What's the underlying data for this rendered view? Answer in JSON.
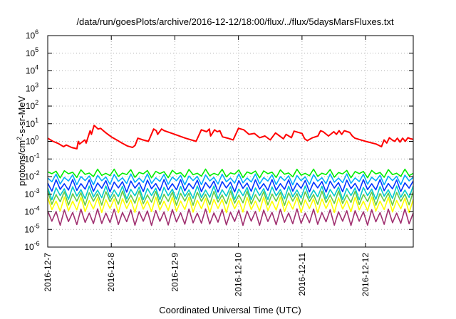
{
  "chart_data": {
    "type": "line",
    "title": "/data/run/goesPlots/archive/2016-12-12/18:00/flux/../flux/5daysMarsFluxes.txt",
    "xlabel": "Coordinated Universal Time (UTC)",
    "ylabel": "protons/cm²-s-sr-MeV",
    "ylabel_parts": [
      "protons/cm",
      "2",
      "-s-sr-MeV"
    ],
    "y_scale": "log",
    "ylim": [
      1e-06,
      1000000.0
    ],
    "y_ticks": [
      {
        "mantissa": "10",
        "exp": "-6",
        "value": 1e-06
      },
      {
        "mantissa": "10",
        "exp": "-5",
        "value": 1e-05
      },
      {
        "mantissa": "10",
        "exp": "-4",
        "value": 0.0001
      },
      {
        "mantissa": "10",
        "exp": "-3",
        "value": 0.001
      },
      {
        "mantissa": "10",
        "exp": "-2",
        "value": 0.01
      },
      {
        "mantissa": "10",
        "exp": "-1",
        "value": 0.1
      },
      {
        "mantissa": "10",
        "exp": "0",
        "value": 1
      },
      {
        "mantissa": "10",
        "exp": "1",
        "value": 10
      },
      {
        "mantissa": "10",
        "exp": "2",
        "value": 100
      },
      {
        "mantissa": "10",
        "exp": "3",
        "value": 1000
      },
      {
        "mantissa": "10",
        "exp": "4",
        "value": 10000
      },
      {
        "mantissa": "10",
        "exp": "5",
        "value": 100000
      },
      {
        "mantissa": "10",
        "exp": "6",
        "value": 1000000
      }
    ],
    "xlim": [
      "2016-12-07T00:00",
      "2016-12-12T18:00"
    ],
    "x_ticks": [
      {
        "label": "2016-12-7",
        "value": "2016-12-07T00:00"
      },
      {
        "label": "2016-12-8",
        "value": "2016-12-08T00:00"
      },
      {
        "label": "2016-12-9",
        "value": "2016-12-09T00:00"
      },
      {
        "label": "2016-12-10",
        "value": "2016-12-10T00:00"
      },
      {
        "label": "2016-12-11",
        "value": "2016-12-11T00:00"
      },
      {
        "label": "2016-12-12",
        "value": "2016-12-12T00:00"
      }
    ],
    "grid": true,
    "legend": "none",
    "series": [
      {
        "color": "#ff0000",
        "x": [
          "2016-12-07T00:00",
          "2016-12-07T02:00",
          "2016-12-07T04:00",
          "2016-12-07T06:00",
          "2016-12-07T07:00",
          "2016-12-07T09:00",
          "2016-12-07T11:00",
          "2016-12-07T11:30",
          "2016-12-07T12:00",
          "2016-12-07T14:00",
          "2016-12-07T14:30",
          "2016-12-07T16:00",
          "2016-12-07T16:30",
          "2016-12-07T17:30",
          "2016-12-07T18:00",
          "2016-12-07T19:00",
          "2016-12-07T20:00",
          "2016-12-07T21:00",
          "2016-12-07T22:00",
          "2016-12-08T00:00",
          "2016-12-08T02:00",
          "2016-12-08T04:00",
          "2016-12-08T06:00",
          "2016-12-08T08:00",
          "2016-12-08T09:00",
          "2016-12-08T10:00",
          "2016-12-08T12:00",
          "2016-12-08T14:00",
          "2016-12-08T16:00",
          "2016-12-08T17:00",
          "2016-12-08T17:30",
          "2016-12-08T19:00",
          "2016-12-08T20:00",
          "2016-12-09T00:00",
          "2016-12-09T04:00",
          "2016-12-09T08:00",
          "2016-12-09T10:00",
          "2016-12-09T12:00",
          "2016-12-09T13:00",
          "2016-12-09T13:30",
          "2016-12-09T15:00",
          "2016-12-09T16:00",
          "2016-12-09T17:00",
          "2016-12-09T18:00",
          "2016-12-09T20:00",
          "2016-12-09T22:00",
          "2016-12-10T00:00",
          "2016-12-10T02:00",
          "2016-12-10T04:00",
          "2016-12-10T06:00",
          "2016-12-10T08:00",
          "2016-12-10T10:00",
          "2016-12-10T12:00",
          "2016-12-10T14:00",
          "2016-12-10T16:00",
          "2016-12-10T17:00",
          "2016-12-10T18:00",
          "2016-12-10T20:00",
          "2016-12-10T21:00",
          "2016-12-11T00:00",
          "2016-12-11T01:00",
          "2016-12-11T02:00",
          "2016-12-11T04:00",
          "2016-12-11T06:00",
          "2016-12-11T07:00",
          "2016-12-11T08:00",
          "2016-12-11T10:00",
          "2016-12-11T12:00",
          "2016-12-11T13:00",
          "2016-12-11T14:00",
          "2016-12-11T15:00",
          "2016-12-11T16:00",
          "2016-12-11T18:00",
          "2016-12-11T19:00",
          "2016-12-11T20:00",
          "2016-12-12T00:00",
          "2016-12-12T04:00",
          "2016-12-12T06:00",
          "2016-12-12T07:00",
          "2016-12-12T08:00",
          "2016-12-12T09:00",
          "2016-12-12T10:00",
          "2016-12-12T11:00",
          "2016-12-12T12:00",
          "2016-12-12T13:00",
          "2016-12-12T14:00",
          "2016-12-12T15:00",
          "2016-12-12T16:00",
          "2016-12-12T17:00",
          "2016-12-12T18:00"
        ],
        "values": [
          1.5,
          1.0,
          0.75,
          0.5,
          0.62,
          0.45,
          0.38,
          1.0,
          0.7,
          1.2,
          0.8,
          4.0,
          2.5,
          8.0,
          7.0,
          5.0,
          5.5,
          4.0,
          3.0,
          1.8,
          1.2,
          0.8,
          0.55,
          0.45,
          0.6,
          1.5,
          1.2,
          1.0,
          5.0,
          4.0,
          2.5,
          5.0,
          4.0,
          2.5,
          1.5,
          1.0,
          4.5,
          3.5,
          5.0,
          2.0,
          4.5,
          3.5,
          4.0,
          1.8,
          1.5,
          1.2,
          5.5,
          4.5,
          2.5,
          2.8,
          1.6,
          2.0,
          1.2,
          3.0,
          1.8,
          1.4,
          2.5,
          1.6,
          3.8,
          2.8,
          1.4,
          1.1,
          1.6,
          2.0,
          4.0,
          3.5,
          2.0,
          3.5,
          2.5,
          4.0,
          2.5,
          4.0,
          3.2,
          2.0,
          1.5,
          1.0,
          0.7,
          0.5,
          1.2,
          0.8,
          1.6,
          1.2,
          1.0,
          1.5,
          0.9,
          1.5,
          1.0,
          1.6,
          1.4,
          1.3
        ]
      },
      {
        "color": "#00ee00",
        "mean": 0.015,
        "spread": 1.8
      },
      {
        "color": "#00aaff",
        "mean": 0.007,
        "spread": 2.4
      },
      {
        "color": "#0033ff",
        "mean": 0.003,
        "spread": 3.0
      },
      {
        "color": "#00cccc",
        "mean": 0.0012,
        "spread": 3.5
      },
      {
        "color": "#66cc44",
        "mean": 0.0006,
        "spread": 3.8
      },
      {
        "color": "#ffff00",
        "mean": 0.00025,
        "spread": 4.5
      },
      {
        "color": "#a03070",
        "mean": 5e-05,
        "spread": 5.0
      }
    ]
  }
}
